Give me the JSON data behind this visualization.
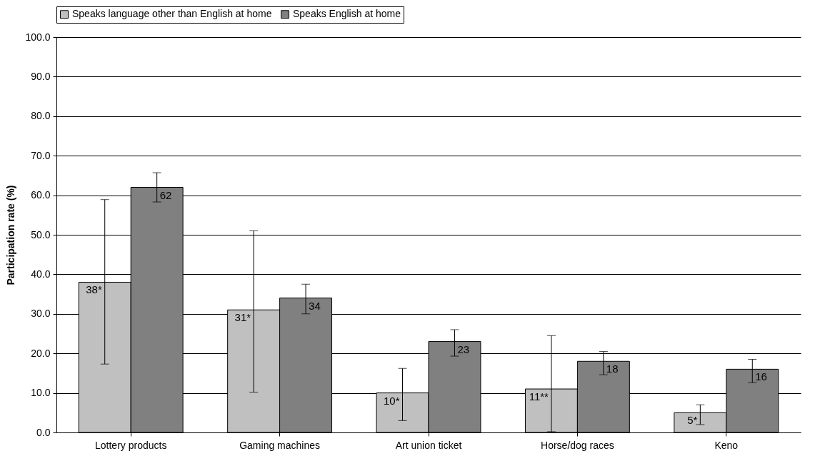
{
  "chart_data": {
    "type": "bar",
    "ylabel": "Participation rate (%)",
    "categories": [
      "Lottery products",
      "Gaming machines",
      "Art union ticket",
      "Horse/dog races",
      "Keno"
    ],
    "series": [
      {
        "name": "Speaks language other than English at home",
        "color": "#c0c0c0",
        "values": [
          38,
          31,
          10,
          11,
          5
        ],
        "errors": [
          [
            17.3,
            58.9
          ],
          [
            10.2,
            51.0
          ],
          [
            3.0,
            16.2
          ],
          [
            0.2,
            24.5
          ],
          [
            2.0,
            7.0
          ]
        ],
        "value_labels": [
          "38*",
          "31*",
          "10*",
          "11**",
          "5*"
        ]
      },
      {
        "name": "Speaks English at home",
        "color": "#808080",
        "values": [
          62,
          34,
          23,
          18,
          16
        ],
        "errors": [
          [
            58.3,
            65.7
          ],
          [
            30.0,
            37.5
          ],
          [
            19.3,
            26.0
          ],
          [
            14.6,
            20.5
          ],
          [
            12.6,
            18.5
          ]
        ],
        "value_labels": [
          "62",
          "34",
          "23",
          "18",
          "16"
        ]
      }
    ],
    "ylim": [
      0,
      100
    ],
    "yticks": [
      {
        "value": 0,
        "label": "0.0"
      },
      {
        "value": 10,
        "label": "10.0"
      },
      {
        "value": 20,
        "label": "20.0"
      },
      {
        "value": 30,
        "label": "30.0"
      },
      {
        "value": 40,
        "label": "40.0"
      },
      {
        "value": 50,
        "label": "50.0"
      },
      {
        "value": 60,
        "label": "60.0"
      },
      {
        "value": 70,
        "label": "70.0"
      },
      {
        "value": 80,
        "label": "80.0"
      },
      {
        "value": 90,
        "label": "90.0"
      },
      {
        "value": 100,
        "label": "100.0"
      }
    ],
    "grid": "y",
    "legend": "top"
  }
}
